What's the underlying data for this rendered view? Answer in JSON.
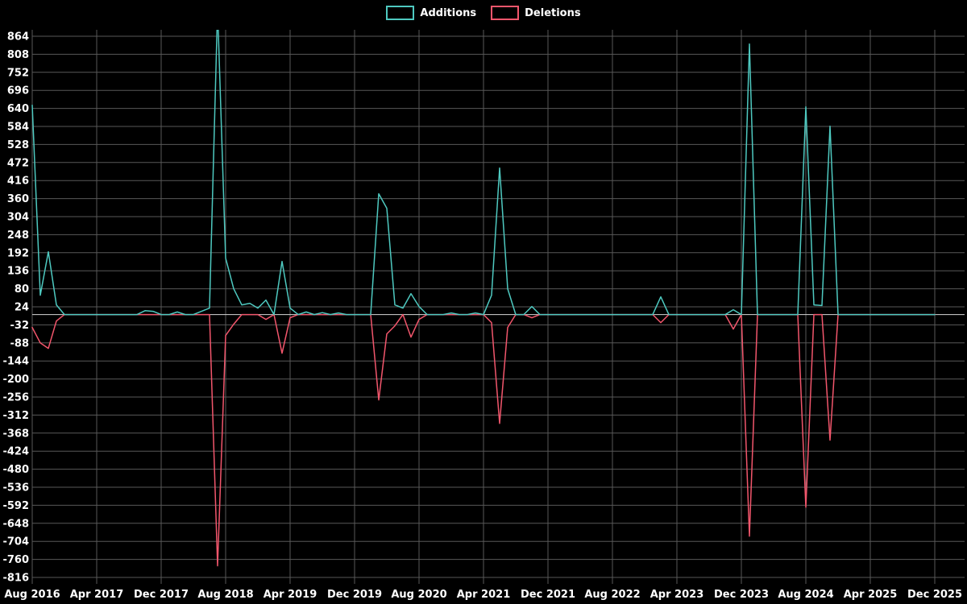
{
  "page": {
    "background": "#000000"
  },
  "chart_data": {
    "type": "line",
    "title": "",
    "grid": true,
    "legend_position": "top-center",
    "grid_color": "#585858",
    "zero_axis_color": "#d8d8d8",
    "text_color": "#ffffff",
    "y_ticks": [
      864,
      808,
      752,
      696,
      640,
      584,
      528,
      472,
      416,
      360,
      304,
      248,
      192,
      136,
      80,
      24,
      -32,
      -88,
      -144,
      -200,
      -256,
      -312,
      -368,
      -424,
      -480,
      -536,
      -592,
      -648,
      -704,
      -760,
      -816
    ],
    "ylim": [
      -816,
      864
    ],
    "y_step": 56,
    "x_tick_labels": [
      "Aug 2016",
      "Apr 2017",
      "Dec 2017",
      "Aug 2018",
      "Apr 2019",
      "Dec 2019",
      "Aug 2020",
      "Apr 2021",
      "Dec 2021",
      "Aug 2022",
      "Apr 2023",
      "Dec 2023",
      "Aug 2024",
      "Apr 2025",
      "Dec 2025"
    ],
    "x_tick_month_indices": [
      0,
      8,
      16,
      24,
      32,
      40,
      48,
      56,
      64,
      72,
      80,
      88,
      96,
      104,
      112
    ],
    "x_unit": "month (index 0 = Aug 2016)",
    "months_total": 113,
    "baseline": 0,
    "series": [
      {
        "name": "Additions",
        "color": "#4EC9C0",
        "points": [
          [
            0,
            650
          ],
          [
            1,
            60
          ],
          [
            2,
            195
          ],
          [
            3,
            30
          ],
          [
            14,
            12
          ],
          [
            15,
            10
          ],
          [
            18,
            8
          ],
          [
            21,
            10
          ],
          [
            22,
            20
          ],
          [
            23,
            950
          ],
          [
            24,
            175
          ],
          [
            25,
            80
          ],
          [
            26,
            30
          ],
          [
            27,
            35
          ],
          [
            28,
            20
          ],
          [
            29,
            45
          ],
          [
            31,
            165
          ],
          [
            32,
            20
          ],
          [
            34,
            8
          ],
          [
            36,
            6
          ],
          [
            38,
            5
          ],
          [
            43,
            375
          ],
          [
            44,
            330
          ],
          [
            45,
            30
          ],
          [
            46,
            20
          ],
          [
            47,
            65
          ],
          [
            48,
            25
          ],
          [
            52,
            5
          ],
          [
            55,
            5
          ],
          [
            57,
            60
          ],
          [
            58,
            455
          ],
          [
            59,
            80
          ],
          [
            62,
            25
          ],
          [
            78,
            55
          ],
          [
            87,
            15
          ],
          [
            89,
            840
          ],
          [
            96,
            645
          ],
          [
            97,
            30
          ],
          [
            98,
            28
          ],
          [
            99,
            585
          ]
        ]
      },
      {
        "name": "Deletions",
        "color": "#F2566C",
        "points": [
          [
            0,
            -40
          ],
          [
            1,
            -88
          ],
          [
            2,
            -105
          ],
          [
            3,
            -20
          ],
          [
            23,
            -780
          ],
          [
            24,
            -65
          ],
          [
            25,
            -30
          ],
          [
            29,
            -15
          ],
          [
            31,
            -120
          ],
          [
            32,
            -10
          ],
          [
            43,
            -265
          ],
          [
            44,
            -60
          ],
          [
            45,
            -35
          ],
          [
            47,
            -70
          ],
          [
            48,
            -15
          ],
          [
            57,
            -25
          ],
          [
            58,
            -338
          ],
          [
            59,
            -40
          ],
          [
            62,
            -10
          ],
          [
            78,
            -25
          ],
          [
            87,
            -45
          ],
          [
            89,
            -688
          ],
          [
            96,
            -598
          ],
          [
            99,
            -390
          ]
        ]
      }
    ]
  }
}
